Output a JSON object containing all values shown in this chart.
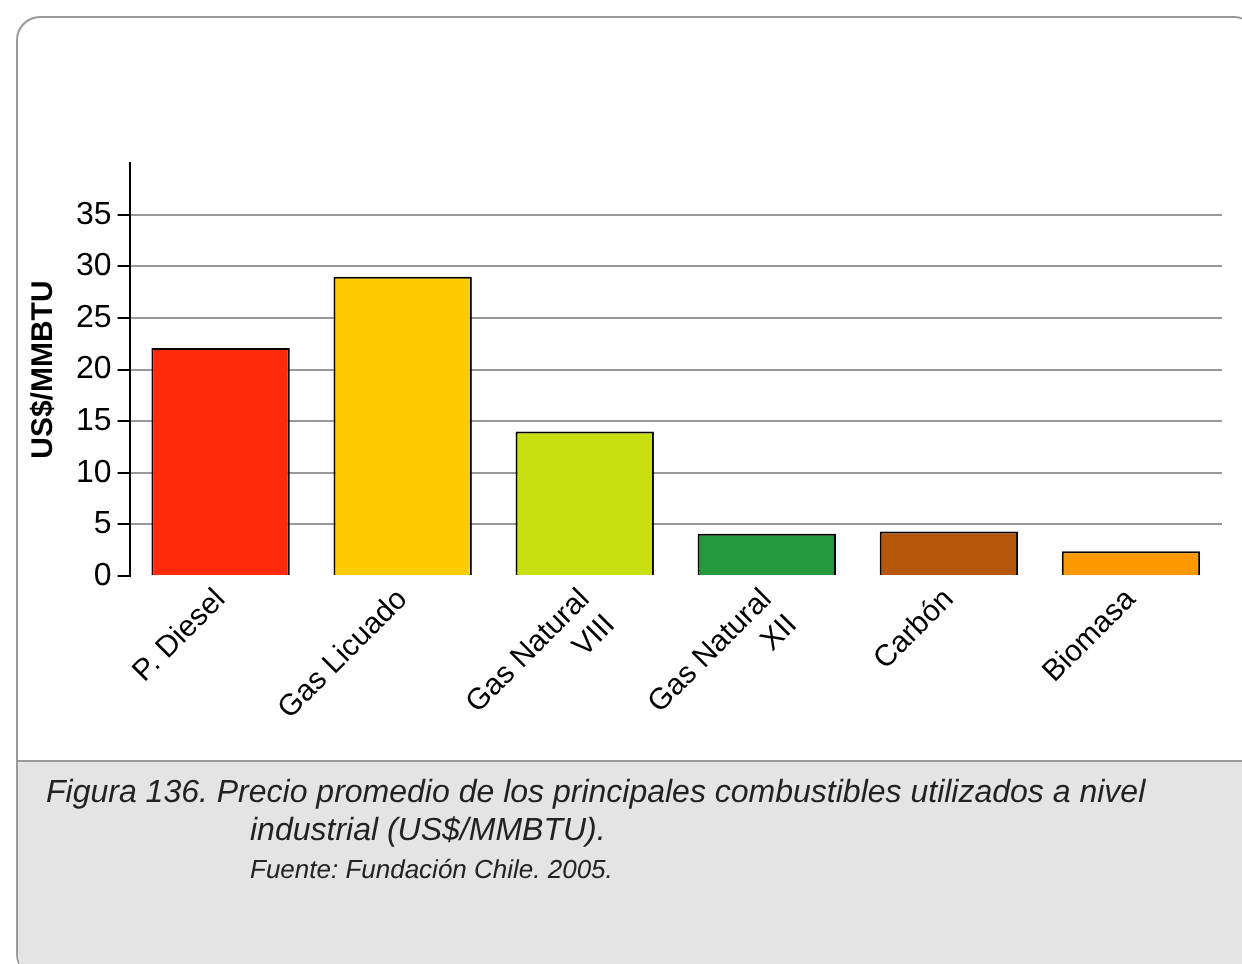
{
  "chart_data": {
    "type": "bar",
    "ylabel": "US$/MMBTU",
    "categories": [
      "P. Diesel",
      "Gas Licuado",
      "Gas Natural\nVIII",
      "Gas Natural\nXII",
      "Carbón",
      "Biomasa"
    ],
    "values": [
      22.1,
      29.0,
      14.0,
      4.1,
      4.3,
      2.4
    ],
    "colors": [
      "#ff2a0a",
      "#ffcc00",
      "#c8e00f",
      "#259a3c",
      "#b5580c",
      "#ff9900"
    ],
    "ylim": [
      0,
      40
    ],
    "yticks": [
      0,
      5,
      10,
      15,
      20,
      25,
      30,
      35
    ],
    "grid": "y",
    "legend": false,
    "annotations": [
      "Figura 136.  Precio promedio de los principales combustibles utilizados a nivel industrial (US$/MMBTU).",
      "Fuente: Fundación Chile. 2005."
    ]
  }
}
